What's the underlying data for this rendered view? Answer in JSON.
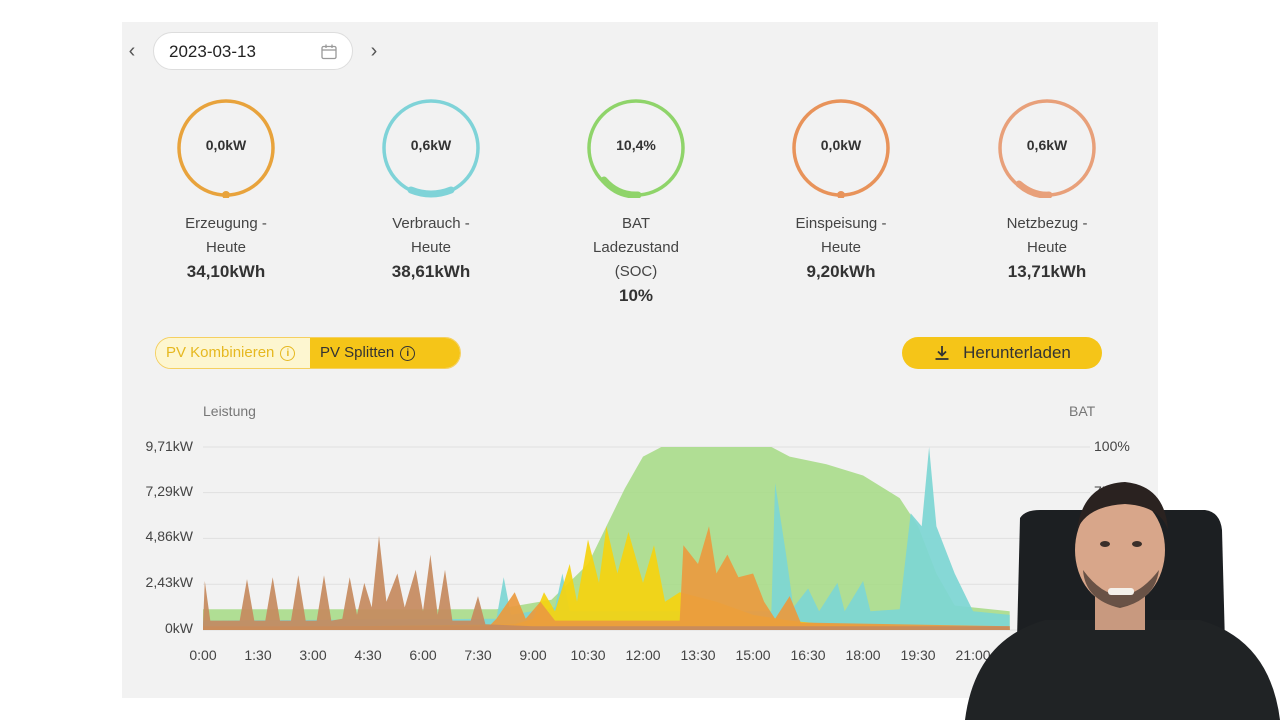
{
  "date_nav": {
    "date": "2023-03-13",
    "prev_icon": "chevron-left-icon",
    "next_icon": "chevron-right-icon",
    "calendar_icon": "calendar-icon"
  },
  "stats": [
    {
      "ring_value": "0,0kW",
      "label_1": "Erzeugung -",
      "label_2": "Heute",
      "label_3": "",
      "value": "34,10kWh",
      "color": "#e8a33c"
    },
    {
      "ring_value": "0,6kW",
      "label_1": "Verbrauch -",
      "label_2": "Heute",
      "label_3": "",
      "value": "38,61kWh",
      "color": "#7fd3d8"
    },
    {
      "ring_value": "10,4%",
      "label_1": "BAT",
      "label_2": "Ladezustand",
      "label_3": "(SOC)",
      "value": "10%",
      "color": "#8fd46a"
    },
    {
      "ring_value": "0,0kW",
      "label_1": "Einspeisung -",
      "label_2": "Heute",
      "label_3": "",
      "value": "9,20kWh",
      "color": "#e8935a"
    },
    {
      "ring_value": "0,6kW",
      "label_1": "Netzbezug -",
      "label_2": "Heute",
      "label_3": "",
      "value": "13,71kWh",
      "color": "#e8a07a"
    }
  ],
  "toggle": {
    "option_a": "PV Kombinieren",
    "option_b": "PV Splitten",
    "selected": "PV Splitten"
  },
  "download": {
    "label": "Herunterladen",
    "icon": "download-icon"
  },
  "chart_data": {
    "type": "area",
    "ylabel_left": "Leistung",
    "ylabel_right": "BAT",
    "y_ticks_left": [
      "9,71kW",
      "7,29kW",
      "4,86kW",
      "2,43kW",
      "0kW"
    ],
    "y_ticks_right": [
      "100%",
      "75"
    ],
    "x_ticks": [
      "0:00",
      "1:30",
      "3:00",
      "4:30",
      "6:00",
      "7:30",
      "9:00",
      "10:30",
      "12:00",
      "13:30",
      "15:00",
      "16:30",
      "18:00",
      "19:30",
      "21:00"
    ],
    "ylim": [
      0,
      9.71
    ],
    "x_hours": [
      0,
      1.5,
      3,
      4.5,
      6,
      7.5,
      9,
      10.5,
      12,
      13.5,
      15,
      16.5,
      18,
      19.5,
      21
    ],
    "series": [
      {
        "color": "#a8dc8a",
        "points": [
          [
            0,
            1.1
          ],
          [
            8,
            1.1
          ],
          [
            9.5,
            1.6
          ],
          [
            10.5,
            3.5
          ],
          [
            11,
            5.5
          ],
          [
            11.5,
            7.5
          ],
          [
            12,
            9.2
          ],
          [
            12.5,
            9.71
          ],
          [
            15.5,
            9.71
          ],
          [
            16,
            9.2
          ],
          [
            17,
            8.8
          ],
          [
            18,
            8.2
          ],
          [
            19,
            7.0
          ],
          [
            19.5,
            5.5
          ],
          [
            20,
            3.0
          ],
          [
            20.5,
            1.3
          ],
          [
            22,
            1.0
          ]
        ]
      },
      {
        "color": "#7dd6d4",
        "points": [
          [
            0,
            0.5
          ],
          [
            8,
            0.6
          ],
          [
            8.2,
            2.8
          ],
          [
            8.4,
            0.8
          ],
          [
            9.6,
            1.2
          ],
          [
            9.8,
            3.0
          ],
          [
            10,
            1.0
          ],
          [
            15.5,
            1.0
          ],
          [
            15.6,
            7.8
          ],
          [
            15.9,
            4.0
          ],
          [
            16.1,
            1.2
          ],
          [
            16.5,
            2.2
          ],
          [
            16.8,
            1.0
          ],
          [
            17.3,
            2.5
          ],
          [
            17.5,
            1.0
          ],
          [
            18,
            2.6
          ],
          [
            18.2,
            1.0
          ],
          [
            19,
            1.1
          ],
          [
            19.3,
            6.2
          ],
          [
            19.6,
            5.5
          ],
          [
            19.8,
            9.71
          ],
          [
            20,
            5.5
          ],
          [
            20.5,
            3.0
          ],
          [
            21,
            1.0
          ],
          [
            22,
            0.8
          ]
        ]
      },
      {
        "color": "#f5d20f",
        "points": [
          [
            0,
            0.1
          ],
          [
            8.5,
            0.3
          ],
          [
            9,
            0.6
          ],
          [
            9.3,
            2.0
          ],
          [
            9.6,
            1.0
          ],
          [
            10,
            3.5
          ],
          [
            10.2,
            1.5
          ],
          [
            10.5,
            4.8
          ],
          [
            10.8,
            2.5
          ],
          [
            11,
            5.5
          ],
          [
            11.3,
            3.0
          ],
          [
            11.6,
            5.2
          ],
          [
            12,
            2.5
          ],
          [
            12.3,
            4.5
          ],
          [
            12.6,
            1.5
          ],
          [
            13,
            2.0
          ],
          [
            14,
            1.5
          ],
          [
            15,
            0.8
          ],
          [
            16,
            0.5
          ],
          [
            17,
            0.3
          ],
          [
            22,
            0.1
          ]
        ]
      },
      {
        "color": "#ea9a3f",
        "points": [
          [
            0,
            0.2
          ],
          [
            7.8,
            0.2
          ],
          [
            8,
            0.6
          ],
          [
            8.5,
            2.0
          ],
          [
            8.8,
            0.6
          ],
          [
            9.2,
            1.5
          ],
          [
            9.6,
            0.5
          ],
          [
            13,
            0.5
          ],
          [
            13.1,
            4.5
          ],
          [
            13.5,
            3.5
          ],
          [
            13.8,
            5.5
          ],
          [
            14,
            3.0
          ],
          [
            14.3,
            4.0
          ],
          [
            14.6,
            2.8
          ],
          [
            15,
            3.0
          ],
          [
            15.3,
            1.5
          ],
          [
            15.6,
            0.6
          ],
          [
            16,
            1.8
          ],
          [
            16.3,
            0.4
          ],
          [
            22,
            0.2
          ]
        ]
      },
      {
        "color": "#c68a5e",
        "points": [
          [
            0,
            0.3
          ],
          [
            0.05,
            2.6
          ],
          [
            0.2,
            0.5
          ],
          [
            1,
            0.5
          ],
          [
            1.2,
            2.7
          ],
          [
            1.4,
            0.5
          ],
          [
            1.7,
            0.5
          ],
          [
            1.9,
            2.8
          ],
          [
            2.1,
            0.5
          ],
          [
            2.4,
            0.5
          ],
          [
            2.6,
            2.9
          ],
          [
            2.8,
            0.5
          ],
          [
            3.1,
            0.5
          ],
          [
            3.3,
            2.9
          ],
          [
            3.5,
            0.5
          ],
          [
            3.8,
            0.6
          ],
          [
            4,
            2.8
          ],
          [
            4.2,
            0.8
          ],
          [
            4.4,
            2.5
          ],
          [
            4.6,
            1.2
          ],
          [
            4.8,
            5.0
          ],
          [
            5,
            1.5
          ],
          [
            5.3,
            3.0
          ],
          [
            5.5,
            1.2
          ],
          [
            5.8,
            3.2
          ],
          [
            6,
            1.0
          ],
          [
            6.2,
            4.0
          ],
          [
            6.4,
            0.8
          ],
          [
            6.6,
            3.2
          ],
          [
            6.8,
            0.5
          ],
          [
            7.3,
            0.5
          ],
          [
            7.5,
            1.8
          ],
          [
            7.7,
            0.3
          ],
          [
            9,
            0.2
          ],
          [
            22,
            0.2
          ]
        ]
      }
    ]
  }
}
